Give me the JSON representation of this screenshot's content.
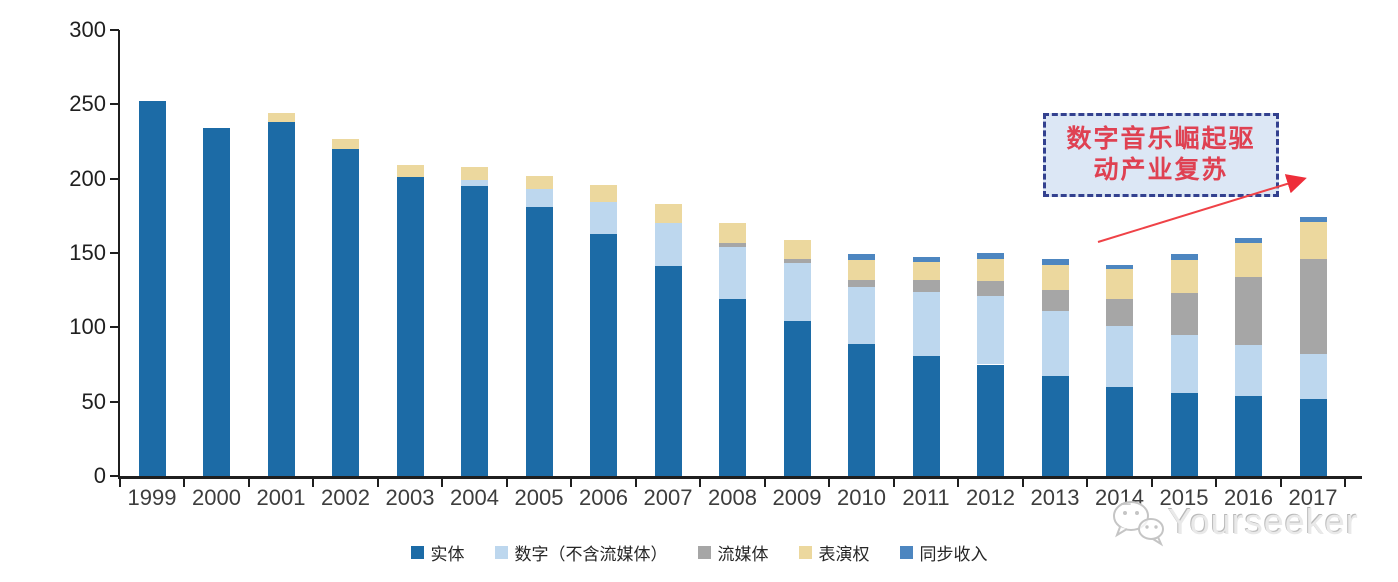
{
  "chart_data": {
    "type": "bar",
    "stacked": true,
    "categories": [
      "1999",
      "2000",
      "2001",
      "2002",
      "2003",
      "2004",
      "2005",
      "2006",
      "2007",
      "2008",
      "2009",
      "2010",
      "2011",
      "2012",
      "2013",
      "2014",
      "2015",
      "2016",
      "2017"
    ],
    "series": [
      {
        "name": "实体",
        "color": "#1c6ba6",
        "values": [
          252,
          234,
          238,
          220,
          201,
          195,
          181,
          163,
          141,
          119,
          104,
          89,
          81,
          75,
          67,
          60,
          56,
          54,
          52
        ]
      },
      {
        "name": "数字（不含流媒体）",
        "color": "#bdd7ee",
        "values": [
          0,
          0,
          0,
          0,
          0,
          4,
          12,
          21,
          29,
          35,
          39,
          38,
          43,
          46,
          44,
          41,
          39,
          34,
          30
        ]
      },
      {
        "name": "流媒体",
        "color": "#a6a6a6",
        "values": [
          0,
          0,
          0,
          0,
          0,
          0,
          0,
          0,
          0,
          3,
          3,
          5,
          8,
          10,
          14,
          18,
          28,
          46,
          64
        ]
      },
      {
        "name": "表演权",
        "color": "#ecd89e",
        "values": [
          0,
          0,
          6,
          7,
          8,
          9,
          9,
          12,
          13,
          13,
          13,
          13,
          12,
          15,
          17,
          20,
          22,
          23,
          25
        ]
      },
      {
        "name": "同步收入",
        "color": "#4d86c0",
        "values": [
          0,
          0,
          0,
          0,
          0,
          0,
          0,
          0,
          0,
          0,
          0,
          4,
          3,
          4,
          4,
          3,
          4,
          3,
          3.5
        ]
      }
    ],
    "ylim": [
      0,
      300
    ],
    "yticks": [
      0,
      50,
      100,
      150,
      200,
      250,
      300
    ],
    "grid": false,
    "legend_position": "bottom",
    "title": ""
  },
  "annotation": {
    "line1": "数字音乐崛起驱",
    "line2": "动产业复苏",
    "text_color": "#df4152",
    "box_fill": "#dce7f5",
    "box_border": "#33418f",
    "arrow_color": "#ef4247"
  },
  "watermark": {
    "text": "Yourseeker",
    "icon": "wechat-icon",
    "color": "#c9c9c9"
  }
}
